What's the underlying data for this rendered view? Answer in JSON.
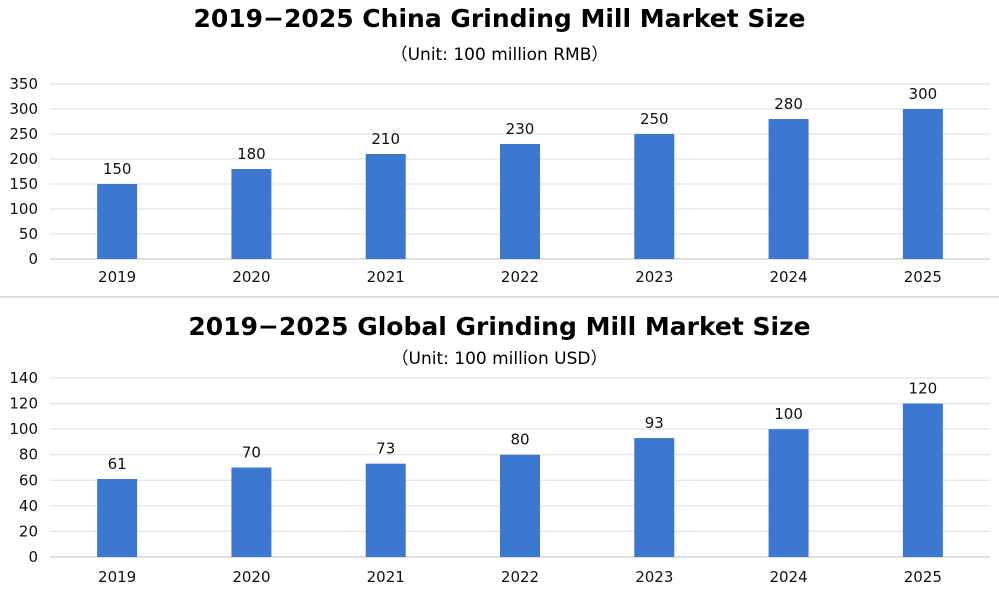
{
  "chart_data": [
    {
      "type": "bar",
      "title": "2019−2025 China Grinding Mill Market Size",
      "subtitle": "（Unit: 100 million RMB）",
      "categories": [
        "2019",
        "2020",
        "2021",
        "2022",
        "2023",
        "2024",
        "2025"
      ],
      "values": [
        150,
        180,
        210,
        230,
        250,
        280,
        300
      ],
      "data_labels": [
        "150",
        "180",
        "210",
        "230",
        "250",
        "280",
        "300"
      ],
      "yticks": [
        "0",
        "50",
        "100",
        "150",
        "200",
        "250",
        "300",
        "350"
      ],
      "ylim": [
        0,
        350
      ],
      "grid": true,
      "legend": "none",
      "bar_color": "#3c78d0"
    },
    {
      "type": "bar",
      "title": "2019−2025 Global Grinding Mill Market Size",
      "subtitle": "（Unit: 100 million USD）",
      "categories": [
        "2019",
        "2020",
        "2021",
        "2022",
        "2023",
        "2024",
        "2025"
      ],
      "values": [
        61,
        70,
        73,
        80,
        93,
        100,
        120
      ],
      "data_labels": [
        "61",
        "70",
        "73",
        "80",
        "93",
        "100",
        "120"
      ],
      "yticks": [
        "0",
        "20",
        "40",
        "60",
        "80",
        "100",
        "120",
        "140"
      ],
      "ylim": [
        0,
        140
      ],
      "grid": true,
      "legend": "none",
      "bar_color": "#3c78d0"
    }
  ]
}
